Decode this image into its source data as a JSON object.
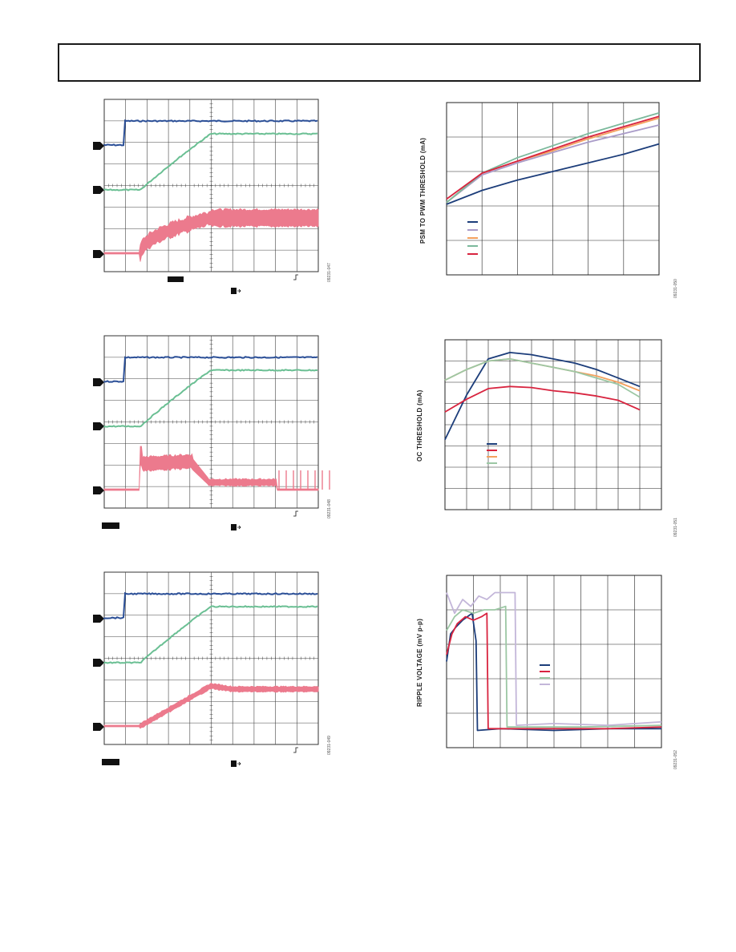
{
  "page": {
    "title": ""
  },
  "colors": {
    "blue": "#2b4f97",
    "green": "#6abf93",
    "pink": "#ec7a8d",
    "navy": "#1c3d7a",
    "lavender": "#a99bc8",
    "orange": "#f4a15e",
    "teal": "#7bb99c",
    "red": "#d8243f",
    "tan": "#d6b48c",
    "sage": "#9cc7a4",
    "lightlavender": "#c3b6d9"
  },
  "scope_figures": [
    {
      "fig_id": "09231-047",
      "channels": [
        "blue-step",
        "green-ramp",
        "pink-ripple"
      ]
    },
    {
      "fig_id": "09231-048",
      "channels": [
        "blue-step",
        "green-ramp",
        "pink-hump"
      ]
    },
    {
      "fig_id": "09231-049",
      "channels": [
        "blue-step",
        "green-ramp",
        "pink-ramp"
      ]
    }
  ],
  "charts": {
    "psm": {
      "ylabel": "PSM TO PWM THRESHOLD (mA)",
      "fig_id": "09231-050"
    },
    "oc": {
      "ylabel": "OC THRESHOLD (mA)",
      "fig_id": "09231-051"
    },
    "ripple": {
      "ylabel": "RIPPLE VOLTAGE (mV p-p)",
      "fig_id": "09231-052"
    }
  },
  "chart_data": [
    {
      "type": "line",
      "title": "",
      "ylabel": "PSM TO PWM THRESHOLD (mA)",
      "xlim": [
        0,
        6
      ],
      "ylim": [
        0,
        5
      ],
      "grid": true,
      "series": [
        {
          "color": "#1c3d7a",
          "x": [
            0,
            1,
            2,
            3,
            4,
            5,
            6
          ],
          "y": [
            2.05,
            2.45,
            2.75,
            3.0,
            3.25,
            3.5,
            3.8
          ]
        },
        {
          "color": "#a99bc8",
          "x": [
            0,
            1,
            2,
            3,
            4,
            5,
            6
          ],
          "y": [
            2.1,
            2.9,
            3.25,
            3.55,
            3.85,
            4.1,
            4.35
          ]
        },
        {
          "color": "#f4a15e",
          "x": [
            0,
            1,
            2,
            3,
            4,
            5,
            6
          ],
          "y": [
            2.1,
            2.95,
            3.3,
            3.6,
            3.95,
            4.25,
            4.55
          ]
        },
        {
          "color": "#7bb99c",
          "x": [
            0,
            1,
            2,
            3,
            4,
            5,
            6
          ],
          "y": [
            2.1,
            2.95,
            3.4,
            3.75,
            4.1,
            4.4,
            4.7
          ]
        },
        {
          "color": "#d8243f",
          "x": [
            0,
            1,
            2,
            3,
            4,
            5,
            6
          ],
          "y": [
            2.2,
            2.95,
            3.3,
            3.65,
            4.0,
            4.3,
            4.6
          ]
        }
      ]
    },
    {
      "type": "line",
      "title": "",
      "ylabel": "OC THRESHOLD (mA)",
      "xlim": [
        0,
        10
      ],
      "ylim": [
        0,
        8
      ],
      "grid": true,
      "series": [
        {
          "color": "#1c3d7a",
          "x": [
            0,
            1,
            2,
            3,
            4,
            5,
            6,
            7,
            8,
            9
          ],
          "y": [
            3.3,
            5.4,
            7.1,
            7.4,
            7.3,
            7.1,
            6.9,
            6.6,
            6.2,
            5.8
          ]
        },
        {
          "color": "#d8243f",
          "x": [
            0,
            1,
            2,
            3,
            4,
            5,
            6,
            7,
            8,
            9
          ],
          "y": [
            4.6,
            5.2,
            5.7,
            5.8,
            5.75,
            5.6,
            5.5,
            5.35,
            5.15,
            4.7
          ]
        },
        {
          "color": "#f4a15e",
          "x": [
            0,
            1,
            2,
            3,
            4,
            5,
            6,
            7,
            8,
            9
          ],
          "y": [
            6.1,
            6.6,
            7.0,
            7.1,
            6.9,
            6.7,
            6.5,
            6.3,
            6.0,
            5.6
          ]
        },
        {
          "color": "#9cc7a4",
          "x": [
            0,
            1,
            2,
            3,
            4,
            5,
            6,
            7,
            8,
            9
          ],
          "y": [
            6.1,
            6.6,
            7.0,
            7.1,
            6.9,
            6.7,
            6.5,
            6.2,
            5.9,
            5.3
          ]
        }
      ]
    },
    {
      "type": "line",
      "title": "",
      "ylabel": "RIPPLE VOLTAGE (mV p-p)",
      "xlim": [
        0,
        8
      ],
      "ylim": [
        0,
        5
      ],
      "grid": true,
      "series": [
        {
          "color": "#1c3d7a",
          "x": [
            0,
            0.15,
            0.35,
            0.6,
            0.95,
            1.1,
            1.15,
            2,
            4,
            6,
            8
          ],
          "y": [
            2.5,
            3.3,
            3.5,
            3.7,
            3.9,
            3.1,
            0.5,
            0.55,
            0.5,
            0.55,
            0.55
          ]
        },
        {
          "color": "#d8243f",
          "x": [
            0,
            0.2,
            0.4,
            0.7,
            1.0,
            1.3,
            1.5,
            1.55,
            2,
            4,
            6,
            8
          ],
          "y": [
            2.7,
            3.3,
            3.6,
            3.8,
            3.7,
            3.8,
            3.9,
            0.55,
            0.55,
            0.55,
            0.55,
            0.6
          ]
        },
        {
          "color": "#9cc7a4",
          "x": [
            0,
            0.3,
            0.6,
            1.0,
            1.4,
            1.8,
            2.2,
            2.25,
            3,
            5,
            8
          ],
          "y": [
            3.4,
            3.8,
            4.0,
            3.9,
            4.0,
            4.0,
            4.1,
            0.6,
            0.6,
            0.6,
            0.65
          ]
        },
        {
          "color": "#c3b6d9",
          "x": [
            0,
            0.3,
            0.6,
            0.9,
            1.2,
            1.5,
            1.8,
            2.1,
            2.4,
            2.55,
            2.6,
            4,
            6,
            8
          ],
          "y": [
            4.5,
            3.9,
            4.3,
            4.1,
            4.4,
            4.3,
            4.5,
            4.5,
            4.5,
            4.5,
            0.65,
            0.7,
            0.65,
            0.75
          ]
        }
      ]
    }
  ]
}
